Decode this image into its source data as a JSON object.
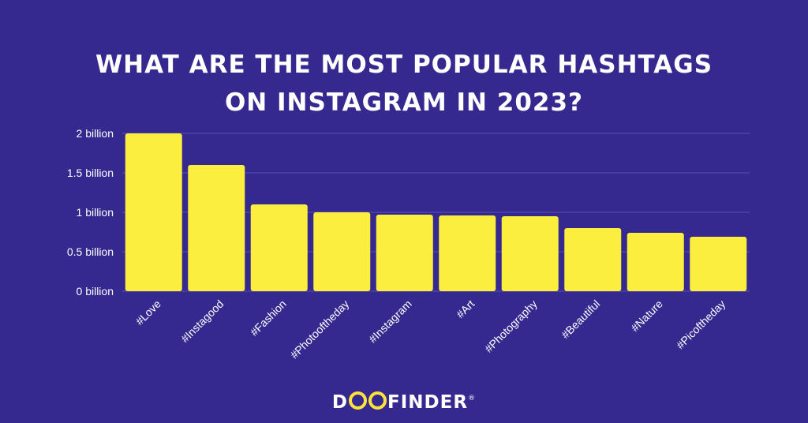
{
  "title_lines": [
    "WHAT ARE THE MOST POPULAR HASHTAGS",
    "ON INSTAGRAM IN 2023?"
  ],
  "brand": {
    "before": "D",
    "after": "FINDER",
    "reg": "®"
  },
  "colors": {
    "background": "#35288f",
    "bar": "#fbee3f",
    "grid": "#5a4fb0",
    "text": "#ffffff",
    "brand_accent": "#ffe23a"
  },
  "chart_data": {
    "type": "bar",
    "title": "WHAT ARE THE MOST POPULAR HASHTAGS ON INSTAGRAM IN 2023?",
    "categories": [
      "#Love",
      "#Instagood",
      "#Fashion",
      "#Photooftheday",
      "#Instagram",
      "#Art",
      "#Photography",
      "#Beautiful",
      "#Nature",
      "#Picoftheday"
    ],
    "values": [
      2.0,
      1.6,
      1.1,
      1.0,
      0.97,
      0.96,
      0.95,
      0.8,
      0.74,
      0.69
    ],
    "unit": "billion",
    "y_ticks": [
      "0 billion",
      "0.5 billion",
      "1 billion",
      "1.5 billion",
      "2 billion"
    ],
    "y_tick_values": [
      0,
      0.5,
      1,
      1.5,
      2
    ],
    "ylim": [
      0,
      2
    ],
    "grid": true,
    "legend": "none"
  }
}
